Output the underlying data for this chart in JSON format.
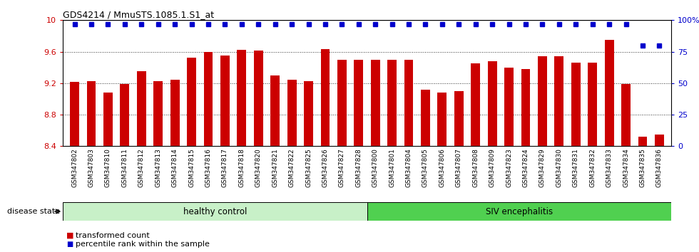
{
  "title": "GDS4214 / MmuSTS.1085.1.S1_at",
  "samples": [
    "GSM347802",
    "GSM347803",
    "GSM347810",
    "GSM347811",
    "GSM347812",
    "GSM347813",
    "GSM347814",
    "GSM347815",
    "GSM347816",
    "GSM347817",
    "GSM347818",
    "GSM347820",
    "GSM347821",
    "GSM347822",
    "GSM347825",
    "GSM347826",
    "GSM347827",
    "GSM347828",
    "GSM347800",
    "GSM347801",
    "GSM347804",
    "GSM347805",
    "GSM347806",
    "GSM347807",
    "GSM347808",
    "GSM347809",
    "GSM347823",
    "GSM347824",
    "GSM347829",
    "GSM347830",
    "GSM347831",
    "GSM347832",
    "GSM347833",
    "GSM347834",
    "GSM347835",
    "GSM347836"
  ],
  "bar_values": [
    9.22,
    9.23,
    9.08,
    9.19,
    9.35,
    9.23,
    9.24,
    9.52,
    9.6,
    9.55,
    9.62,
    9.61,
    9.3,
    9.24,
    9.23,
    9.63,
    9.5,
    9.5,
    9.5,
    9.5,
    9.5,
    9.12,
    9.08,
    9.1,
    9.45,
    9.48,
    9.4,
    9.38,
    9.54,
    9.54,
    9.46,
    9.46,
    9.75,
    9.19,
    8.52,
    8.55
  ],
  "percentile_values": [
    97,
    97,
    97,
    97,
    97,
    97,
    97,
    97,
    97,
    97,
    97,
    97,
    97,
    97,
    97,
    97,
    97,
    97,
    97,
    97,
    97,
    97,
    97,
    97,
    97,
    97,
    97,
    97,
    97,
    97,
    97,
    97,
    97,
    97,
    80,
    80
  ],
  "bar_color": "#CC0000",
  "percentile_color": "#0000CC",
  "ylim_left": [
    8.4,
    10.0
  ],
  "ylim_right": [
    0,
    100
  ],
  "yticks_left": [
    8.4,
    8.8,
    9.2,
    9.6,
    10.0
  ],
  "yticks_right": [
    0,
    25,
    50,
    75,
    100
  ],
  "healthy_control_count": 18,
  "siv_count": 18,
  "healthy_color": "#c8f0c8",
  "siv_color": "#50d050",
  "bg_color": "#FFFFFF",
  "tick_label_color": "#CC0000",
  "right_tick_color": "#0000CC",
  "group_label_healthy": "healthy control",
  "group_label_siv": "SIV encephalitis",
  "legend_bar_label": "transformed count",
  "legend_dot_label": "percentile rank within the sample",
  "disease_state_label": "disease state"
}
